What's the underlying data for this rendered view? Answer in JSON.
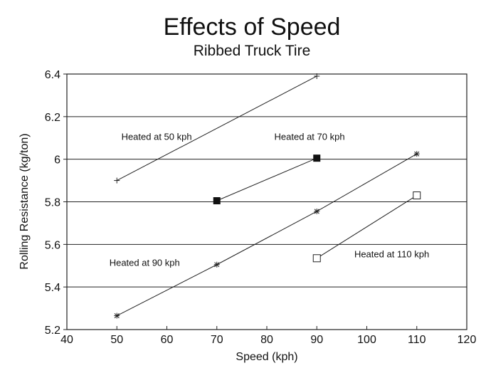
{
  "chart_data": {
    "type": "line",
    "title": "Effects of Speed",
    "subtitle": "Ribbed Truck Tire",
    "xlabel": "Speed (kph)",
    "ylabel": "Rolling Resistance (kg/ton)",
    "xlim": [
      40,
      120
    ],
    "ylim": [
      5.2,
      6.4
    ],
    "xticks": [
      40,
      50,
      60,
      70,
      80,
      90,
      100,
      110,
      120
    ],
    "yticks": [
      5.2,
      5.4,
      5.6,
      5.8,
      6.0,
      6.2,
      6.4
    ],
    "xtick_labels": [
      "40",
      "50",
      "60",
      "70",
      "80",
      "90",
      "100",
      "110",
      "120"
    ],
    "ytick_labels": [
      "5.2",
      "5.4",
      "5.6",
      "5.8",
      "6",
      "6.2",
      "6.4"
    ],
    "grid": "horizontal",
    "legend": "none",
    "series": [
      {
        "name": "Heated at 50 kph",
        "marker": "plus",
        "points": [
          {
            "x": 50,
            "y": 5.9
          },
          {
            "x": 90,
            "y": 6.39
          }
        ]
      },
      {
        "name": "Heated at 70 kph",
        "marker": "filled-square",
        "points": [
          {
            "x": 70,
            "y": 5.805
          },
          {
            "x": 90,
            "y": 6.005
          }
        ]
      },
      {
        "name": "Heated at 90 kph",
        "marker": "asterisk",
        "points": [
          {
            "x": 50,
            "y": 5.265
          },
          {
            "x": 70,
            "y": 5.505
          },
          {
            "x": 90,
            "y": 5.755
          },
          {
            "x": 110,
            "y": 6.025
          }
        ]
      },
      {
        "name": "Heated at 110 kph",
        "marker": "open-square",
        "points": [
          {
            "x": 90,
            "y": 5.535
          },
          {
            "x": 110,
            "y": 5.83
          }
        ]
      }
    ],
    "annotations": [
      {
        "text": "Heated at 50 kph",
        "x": 50.9,
        "y": 6.09
      },
      {
        "text": "Heated at 70 kph",
        "x": 81.5,
        "y": 6.09
      },
      {
        "text": "Heated at 90 kph",
        "x": 48.5,
        "y": 5.5
      },
      {
        "text": "Heated at 110 kph",
        "x": 97.5,
        "y": 5.54
      }
    ]
  }
}
